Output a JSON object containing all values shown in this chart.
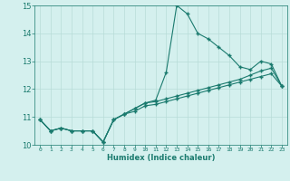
{
  "xlabel": "Humidex (Indice chaleur)",
  "bg_color": "#d4f0ee",
  "grid_color": "#b8dcd8",
  "line_color": "#1a7a6e",
  "xlim": [
    -0.5,
    23.5
  ],
  "ylim": [
    10,
    15
  ],
  "yticks": [
    10,
    11,
    12,
    13,
    14,
    15
  ],
  "xticks": [
    0,
    1,
    2,
    3,
    4,
    5,
    6,
    7,
    8,
    9,
    10,
    11,
    12,
    13,
    14,
    15,
    16,
    17,
    18,
    19,
    20,
    21,
    22,
    23
  ],
  "series1_x": [
    0,
    1,
    2,
    3,
    4,
    5,
    6,
    7,
    8,
    9,
    10,
    11,
    12,
    13,
    14,
    15,
    16,
    17,
    18,
    19,
    20,
    21,
    22,
    23
  ],
  "series1_y": [
    10.9,
    10.5,
    10.6,
    10.5,
    10.5,
    10.5,
    10.1,
    10.9,
    11.1,
    11.3,
    11.5,
    11.6,
    12.6,
    15.0,
    14.7,
    14.0,
    13.8,
    13.5,
    13.2,
    12.8,
    12.7,
    13.0,
    12.9,
    12.1
  ],
  "series2_x": [
    0,
    1,
    2,
    3,
    4,
    5,
    6,
    7,
    8,
    9,
    10,
    11,
    12,
    13,
    14,
    15,
    16,
    17,
    18,
    19,
    20,
    21,
    22,
    23
  ],
  "series2_y": [
    10.9,
    10.5,
    10.6,
    10.5,
    10.5,
    10.5,
    10.1,
    10.9,
    11.1,
    11.3,
    11.5,
    11.55,
    11.65,
    11.75,
    11.85,
    11.95,
    12.05,
    12.15,
    12.25,
    12.35,
    12.5,
    12.65,
    12.75,
    12.1
  ],
  "series3_x": [
    0,
    1,
    2,
    3,
    4,
    5,
    6,
    7,
    8,
    9,
    10,
    11,
    12,
    13,
    14,
    15,
    16,
    17,
    18,
    19,
    20,
    21,
    22,
    23
  ],
  "series3_y": [
    10.9,
    10.5,
    10.6,
    10.5,
    10.5,
    10.5,
    10.1,
    10.9,
    11.1,
    11.2,
    11.4,
    11.45,
    11.55,
    11.65,
    11.75,
    11.85,
    11.95,
    12.05,
    12.15,
    12.25,
    12.35,
    12.45,
    12.55,
    12.1
  ]
}
